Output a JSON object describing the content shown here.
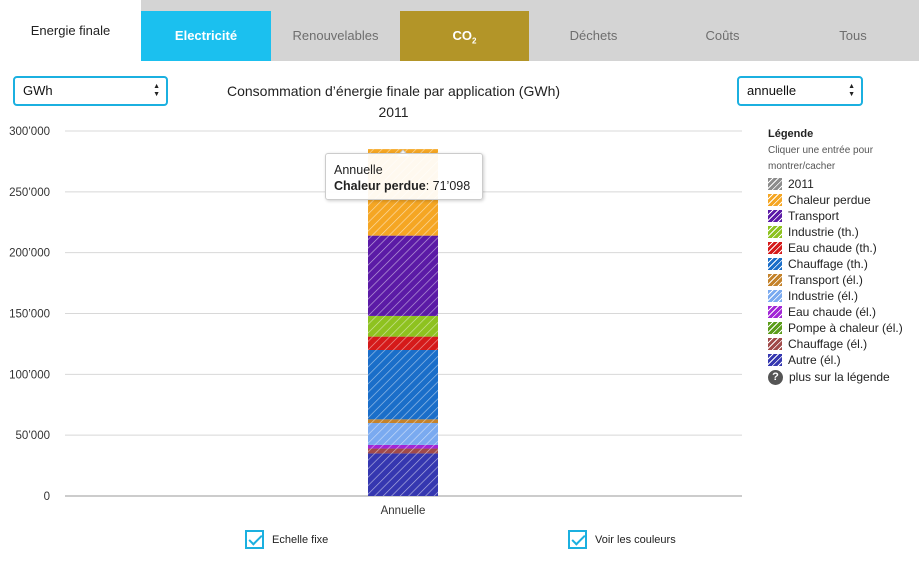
{
  "tabs": [
    {
      "label": "Energie finale",
      "active": true
    },
    {
      "label": "Electricité"
    },
    {
      "label": "Renouvelables"
    },
    {
      "label": "CO",
      "sub": "2"
    },
    {
      "label": "Déchets"
    },
    {
      "label": "Coûts"
    },
    {
      "label": "Tous"
    }
  ],
  "unit_select": {
    "value": "GWh"
  },
  "period_select": {
    "value": "annuelle"
  },
  "title": "Consommation d’énergie finale par application (GWh)",
  "subtitle": "2011",
  "tooltip": {
    "header": "Annuelle",
    "series": "Chaleur perdue",
    "value": ": 71’098"
  },
  "legend": {
    "title": "Légende",
    "hint": "Cliquer une entrée pour montrer/cacher",
    "items": [
      {
        "label": "2011",
        "color": "#8c8c8c"
      },
      {
        "label": "Chaleur perdue",
        "color": "#f5a623"
      },
      {
        "label": "Transport",
        "color": "#5b1aa6"
      },
      {
        "label": "Industrie (th.)",
        "color": "#8ec21f"
      },
      {
        "label": "Eau chaude (th.)",
        "color": "#d51a1a"
      },
      {
        "label": "Chauffage (th.)",
        "color": "#1a6ec9"
      },
      {
        "label": "Transport (él.)",
        "color": "#c4822a"
      },
      {
        "label": "Industrie (él.)",
        "color": "#7aaaf0"
      },
      {
        "label": "Eau chaude (él.)",
        "color": "#a226d6"
      },
      {
        "label": "Pompe à chaleur (él.)",
        "color": "#5b9c1a"
      },
      {
        "label": "Chauffage (él.)",
        "color": "#a04a4a"
      },
      {
        "label": "Autre (él.)",
        "color": "#3537b0"
      }
    ],
    "more": "plus sur la légende"
  },
  "checkboxes": {
    "fixed_scale": {
      "label": "Echelle fixe",
      "checked": true
    },
    "show_colors": {
      "label": "Voir les couleurs",
      "checked": true
    }
  },
  "chart_data": {
    "type": "bar",
    "stacked": true,
    "categories": [
      "Annuelle"
    ],
    "ylim": [
      0,
      300000
    ],
    "yticks": [
      0,
      50000,
      100000,
      150000,
      200000,
      250000,
      300000
    ],
    "ytick_labels": [
      "0",
      "50’000",
      "100’000",
      "150’000",
      "200’000",
      "250’000",
      "300’000"
    ],
    "grid": true,
    "legend_position": "right",
    "series": [
      {
        "name": "Autre (él.)",
        "values": [
          35000
        ],
        "color": "#3537b0"
      },
      {
        "name": "Chauffage (él.)",
        "values": [
          4000
        ],
        "color": "#a04a4a"
      },
      {
        "name": "Pompe à chaleur (él.)",
        "values": [
          0
        ],
        "color": "#5b9c1a"
      },
      {
        "name": "Eau chaude (él.)",
        "values": [
          3000
        ],
        "color": "#a226d6"
      },
      {
        "name": "Industrie (él.)",
        "values": [
          18000
        ],
        "color": "#7aaaf0"
      },
      {
        "name": "Transport (él.)",
        "values": [
          3000
        ],
        "color": "#c4822a"
      },
      {
        "name": "Chauffage (th.)",
        "values": [
          57000
        ],
        "color": "#1a6ec9"
      },
      {
        "name": "Eau chaude (th.)",
        "values": [
          11000
        ],
        "color": "#d51a1a"
      },
      {
        "name": "Industrie (th.)",
        "values": [
          17000
        ],
        "color": "#8ec21f"
      },
      {
        "name": "Transport",
        "values": [
          66000
        ],
        "color": "#5b1aa6"
      },
      {
        "name": "Chaleur perdue",
        "values": [
          71098
        ],
        "color": "#f5a623"
      }
    ]
  }
}
